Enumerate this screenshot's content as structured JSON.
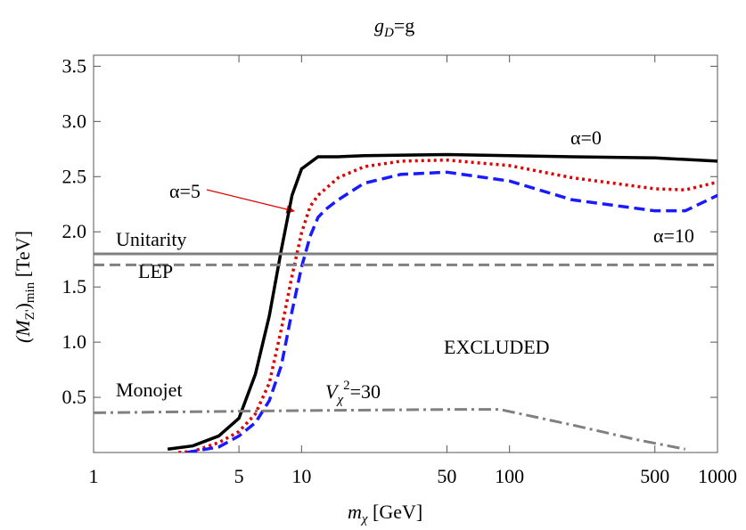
{
  "chart_data": {
    "type": "line",
    "title": [
      "g",
      "D",
      "=g"
    ],
    "y_label": [
      "(M",
      "Z'",
      ")",
      "min",
      " [TeV]"
    ],
    "x_label": [
      "m",
      "χ",
      " [GeV]"
    ],
    "annotations": [
      "EXCLUDED"
    ],
    "v_label": [
      "V",
      "χ",
      "2",
      "=30"
    ],
    "xlim": [
      1,
      1000
    ],
    "xticks": [
      1,
      5,
      10,
      50,
      100,
      500,
      1000
    ],
    "xscale": "log",
    "ylim": [
      0,
      3.6
    ],
    "yticks": [
      0.5,
      {
        "value": 1,
        "label": "1.0"
      },
      1.5,
      {
        "value": 2,
        "label": "2.0"
      },
      2.5,
      {
        "value": 3,
        "label": "3.0"
      },
      3.5
    ],
    "series": [
      {
        "name": "α=0",
        "color": "#000000",
        "dash": "solid",
        "x": [
          2.27,
          3,
          4,
          5,
          6,
          7,
          8,
          9,
          10,
          12,
          15,
          20,
          50,
          100,
          200,
          500,
          1000
        ],
        "values": [
          0.03,
          0.06,
          0.15,
          0.31,
          0.71,
          1.24,
          1.84,
          2.33,
          2.57,
          2.68,
          2.68,
          2.69,
          2.7,
          2.69,
          2.68,
          2.67,
          2.64
        ]
      },
      {
        "name": "α=5",
        "color": "#e00000",
        "dash": "dotted",
        "x": [
          2.56,
          3,
          4,
          5,
          6,
          7,
          8,
          9,
          10,
          11,
          12,
          15,
          20,
          30,
          50,
          100,
          200,
          500,
          700,
          1000
        ],
        "values": [
          0,
          0.01,
          0.09,
          0.19,
          0.35,
          0.63,
          1.12,
          1.6,
          1.99,
          2.23,
          2.33,
          2.49,
          2.59,
          2.64,
          2.65,
          2.6,
          2.49,
          2.39,
          2.38,
          2.45
        ]
      },
      {
        "name": "α=10",
        "color": "#1a1aff",
        "dash": "dashed",
        "x": [
          2.8,
          4,
          5,
          6,
          7,
          8,
          9,
          10,
          11,
          12,
          13,
          15,
          20,
          30,
          50,
          100,
          200,
          500,
          700,
          1000
        ],
        "values": [
          0,
          0.05,
          0.15,
          0.27,
          0.47,
          0.79,
          1.28,
          1.68,
          1.96,
          2.13,
          2.2,
          2.29,
          2.44,
          2.52,
          2.54,
          2.46,
          2.29,
          2.19,
          2.19,
          2.33
        ]
      },
      {
        "name": "Unitarity",
        "color": "#808080",
        "dash": "solid",
        "x": [
          1,
          1000
        ],
        "values": [
          1.8,
          1.8
        ]
      },
      {
        "name": "LEP",
        "color": "#808080",
        "dash": "dashed",
        "x": [
          1,
          1000
        ],
        "values": [
          1.7,
          1.7
        ]
      },
      {
        "name": "Monojet",
        "color": "#808080",
        "dash": "dashdot",
        "x": [
          1,
          10,
          50,
          90,
          200,
          400,
          700
        ],
        "values": [
          0.36,
          0.38,
          0.39,
          0.39,
          0.25,
          0.12,
          0.03
        ]
      }
    ]
  }
}
